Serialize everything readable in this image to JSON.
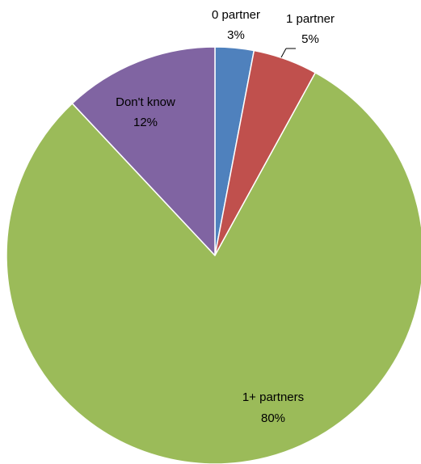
{
  "chart_data": {
    "type": "pie",
    "slices": [
      {
        "label": "0 partner",
        "value": 3,
        "value_label": "3%",
        "color": "#4F81BD"
      },
      {
        "label": "1 partner",
        "value": 5,
        "value_label": "5%",
        "color": "#C0504D"
      },
      {
        "label": "1+ partners",
        "value": 80,
        "value_label": "80%",
        "color": "#9BBB59"
      },
      {
        "label": "Don't know",
        "value": 12,
        "value_label": "12%",
        "color": "#8064A2"
      }
    ],
    "start_angle": "12 o'clock",
    "direction": "clockwise",
    "legend": "none"
  }
}
